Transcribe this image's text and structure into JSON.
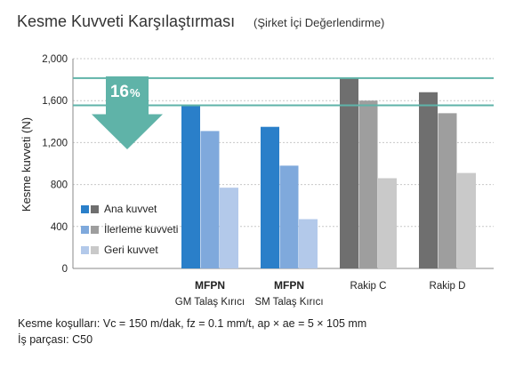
{
  "chart_data": {
    "type": "bar",
    "title": "Kesme Kuvveti Karşılaştırması",
    "subtitle": "(Şirket İçi Değerlendirme)",
    "ylabel": "Kesme kuvveti (N)",
    "ylim": [
      0,
      2000
    ],
    "yticks": [
      "0",
      "400",
      "800",
      "1,200",
      "1,600",
      "2,000"
    ],
    "ytick_values": [
      0,
      400,
      800,
      1200,
      1600,
      2000
    ],
    "grid": true,
    "categories": [
      {
        "line1": "MFPN",
        "line2": "GM Talaş Kırıcı",
        "bold": true
      },
      {
        "line1": "MFPN",
        "line2": "SM Talaş Kırıcı",
        "bold": true
      },
      {
        "line1": "Rakip C",
        "line2": "",
        "bold": false
      },
      {
        "line1": "Rakip  D",
        "line2": "",
        "bold": false
      }
    ],
    "series": [
      {
        "name": "Ana kuvvet",
        "values": [
          1550,
          1350,
          1810,
          1680
        ]
      },
      {
        "name": "İlerleme kuvveti",
        "values": [
          1310,
          980,
          1600,
          1480
        ]
      },
      {
        "name": "Geri kuvvet",
        "values": [
          770,
          470,
          860,
          910
        ]
      }
    ],
    "reference_lines": [
      1555,
      1815
    ],
    "reduction_badge": {
      "value": "16",
      "unit": "%"
    },
    "legend_placement": "lower-left"
  },
  "colors": {
    "mfpn_series": [
      "#2a7fc9",
      "#7fa9dc",
      "#b3c9ea"
    ],
    "rival_series": [
      "#6f6f6f",
      "#9e9e9e",
      "#c9c9c9"
    ],
    "reference_line": "#5fb3a8",
    "badge": "#5fb3a8",
    "grid": "#c8c8c8",
    "axis": "#888888"
  },
  "notes": {
    "conditions": "Kesme koşulları: Vc = 150 m/dak, fz = 0.1 mm/t, ap × ae = 5 × 105 mm",
    "workpiece": "İş parçası: C50"
  }
}
